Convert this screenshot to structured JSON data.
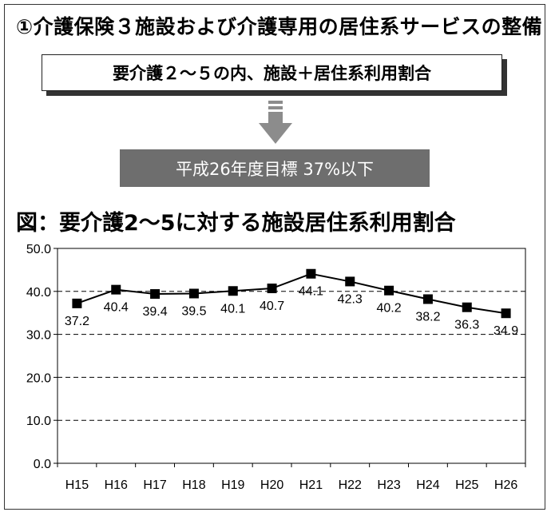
{
  "header": {
    "title": "①介護保険３施設および介護専用の居住系サービスの整備",
    "target_label": "要介護２～５の内、施設＋居住系利用割合",
    "goal_label": "平成26年度目標 37%以下"
  },
  "colors": {
    "goal_box": "#6e6e6e",
    "arrow": "#8c8c8c",
    "line": "#000000"
  },
  "chart_data": {
    "type": "line",
    "title": "図：要介護2～5に対する施設居住系利用割合",
    "categories": [
      "H15",
      "H16",
      "H17",
      "H18",
      "H19",
      "H20",
      "H21",
      "H22",
      "H23",
      "H24",
      "H25",
      "H26"
    ],
    "values": [
      37.2,
      40.4,
      39.4,
      39.5,
      40.1,
      40.7,
      44.1,
      42.3,
      40.2,
      38.2,
      36.3,
      34.9
    ],
    "value_labels": [
      "37.2",
      "40.4",
      "39.4",
      "39.5",
      "40.1",
      "40.7",
      "44.1",
      "42.3",
      "40.2",
      "38.2",
      "36.3",
      "34.9"
    ],
    "y_ticks": [
      "50.0",
      "40.0",
      "30.0",
      "20.0",
      "10.0",
      "0.0"
    ],
    "ylim": [
      0,
      50
    ],
    "grid": "dashed horizontal",
    "legend": "none"
  }
}
